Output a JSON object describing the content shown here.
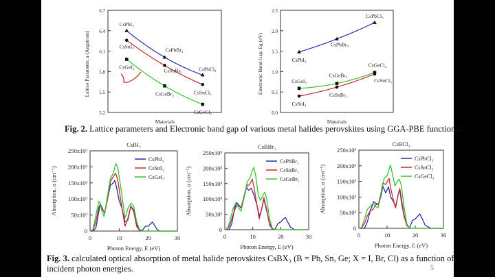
{
  "colors": {
    "Pb": "#2a2aa8",
    "Sn": "#c42a2a",
    "Ge": "#34c234",
    "axis": "#333333"
  },
  "fig2": {
    "caption_label": "Fig. 2.",
    "caption_text": " Lattice parameters and Electronic band gap of various metal halides perovskites using GGA-PBE functional."
  },
  "fig3": {
    "caption_label": "Fig. 3.",
    "caption_line1": " calculated optical absorption of metal halide perovskites CsBX₃ (B = Pb, Sn, Ge; X = I, Br, Cl) as a function of",
    "caption_line2": "incident photon energies."
  },
  "page_number": "5",
  "chart_data": [
    {
      "type": "line",
      "xlabel": "Materials",
      "ylabel": "Lattice Parameter, a (Angstrom)",
      "ylim": [
        5.2,
        6.7
      ],
      "yticks": [
        "5.2",
        "5.5",
        "5.8",
        "6.1",
        "6.4",
        "6.7"
      ],
      "grid": false,
      "series": [
        {
          "key": "Pb",
          "marker": "triangle",
          "labels": [
            "CsPbI₃",
            "CsPbBr₃",
            "CsPbCl₃"
          ],
          "values": [
            6.4,
            6.01,
            5.75
          ]
        },
        {
          "key": "Sn",
          "marker": "circle",
          "labels": [
            "CsSnI₃",
            "CsSnBr₃",
            "CsSnCl₃"
          ],
          "values": [
            6.26,
            5.89,
            5.61
          ]
        },
        {
          "key": "Ge",
          "marker": "square",
          "labels": [
            "CsGeI₃",
            "CsGeBr₃",
            "CsGeCl₃"
          ],
          "values": [
            5.98,
            5.59,
            5.32
          ]
        }
      ]
    },
    {
      "type": "line",
      "xlabel": "Materials",
      "ylabel": "Electronic Band Gap, Eg (eV)",
      "ylim": [
        0.0,
        2.5
      ],
      "yticks": [
        "0.0",
        "0.5",
        "1.0",
        "1.5",
        "2.0",
        "2.5"
      ],
      "grid": false,
      "series": [
        {
          "key": "Pb",
          "marker": "triangle",
          "labels": [
            "CsPbI₃",
            "CsPbBr₃",
            "CsPbCl₃"
          ],
          "values": [
            1.48,
            1.8,
            2.2
          ]
        },
        {
          "key": "Sn",
          "marker": "circle",
          "labels": [
            "CsSnI₃",
            "CsSnBr₃",
            "CsSnCl₃"
          ],
          "values": [
            0.4,
            0.62,
            0.94
          ]
        },
        {
          "key": "Ge",
          "marker": "square",
          "labels": [
            "CsGeI₃",
            "CsGeBr₃",
            "CsGeCl₃"
          ],
          "values": [
            0.59,
            0.71,
            0.98
          ]
        }
      ]
    },
    {
      "type": "line",
      "title": "CsBI₃",
      "xlabel": "Photon Energy, E (eV)",
      "ylabel": "Absorption, α (cm⁻¹)",
      "xlim": [
        0,
        30
      ],
      "ylim": [
        0,
        250000
      ],
      "xticks": [
        "0",
        "10",
        "20",
        "30"
      ],
      "yticks": [
        "0",
        "50x10³",
        "100x10³",
        "150x10³",
        "200x10³",
        "250x10³"
      ],
      "legend": "top-right",
      "grid": false,
      "series": [
        {
          "key": "Pb",
          "name": "CsPbI₃",
          "x": [
            0,
            1,
            2,
            3,
            3.5,
            4,
            5,
            6,
            7,
            8,
            8.5,
            9,
            10,
            11,
            12,
            13,
            14,
            15,
            16,
            17,
            18,
            19,
            20,
            21,
            21.5,
            22,
            23,
            24,
            30
          ],
          "y": [
            0,
            0,
            10000,
            60000,
            85000,
            75000,
            55000,
            100000,
            143000,
            150000,
            158000,
            140000,
            95000,
            70000,
            28000,
            35000,
            78000,
            65000,
            20000,
            5000,
            2000,
            15000,
            15000,
            25000,
            28000,
            20000,
            5000,
            0,
            0
          ]
        },
        {
          "key": "Sn",
          "name": "CsSnI₃",
          "x": [
            0,
            1,
            2,
            3,
            3.5,
            4,
            5,
            6,
            7,
            8,
            8.8,
            9.5,
            10,
            11,
            12,
            13,
            14,
            15,
            16,
            17,
            18,
            30
          ],
          "y": [
            0,
            2000,
            30000,
            75000,
            82000,
            70000,
            58000,
            100000,
            155000,
            170000,
            180000,
            160000,
            130000,
            70000,
            15000,
            40000,
            78000,
            60000,
            15000,
            2000,
            0,
            0
          ]
        },
        {
          "key": "Ge",
          "name": "CsGeI₃",
          "x": [
            0,
            1,
            2,
            3,
            3.5,
            4,
            4.8,
            6,
            7,
            8,
            8.8,
            9.5,
            10,
            11,
            12,
            13,
            14,
            15,
            16,
            17,
            18,
            30
          ],
          "y": [
            0,
            5000,
            50000,
            92000,
            88000,
            65000,
            45000,
            110000,
            165000,
            180000,
            210000,
            200000,
            170000,
            110000,
            40000,
            70000,
            87000,
            78000,
            30000,
            5000,
            0,
            0
          ]
        }
      ]
    },
    {
      "type": "line",
      "title": "CsBBr₃",
      "xlabel": "Photon Energy, E (eV)",
      "ylabel": "Absorption, α (cm⁻¹)",
      "xlim": [
        0,
        30
      ],
      "ylim": [
        0,
        250000
      ],
      "xticks": [
        "0",
        "10",
        "20",
        "30"
      ],
      "yticks": [
        "0",
        "50x10³",
        "100x10³",
        "150x10³",
        "200x10³",
        "250x10³"
      ],
      "legend": "top-right",
      "grid": false,
      "series": [
        {
          "key": "Pb",
          "name": "CsPbBr₃",
          "x": [
            0,
            1.5,
            2.5,
            3.5,
            4.3,
            5,
            6,
            7,
            7.8,
            8.5,
            9.5,
            10.5,
            11.5,
            12.3,
            13,
            14,
            15,
            16,
            17,
            18,
            19,
            20,
            21,
            21.7,
            22.5,
            23.5,
            25,
            30
          ],
          "y": [
            0,
            0,
            20000,
            70000,
            88000,
            80000,
            70000,
            110000,
            138000,
            128000,
            135000,
            110000,
            80000,
            45000,
            60000,
            100000,
            60000,
            20000,
            3000,
            2000,
            20000,
            25000,
            35000,
            40000,
            25000,
            8000,
            0,
            0
          ]
        },
        {
          "key": "Sn",
          "name": "CsSnBr₃",
          "x": [
            0,
            1,
            2,
            3,
            4,
            5,
            5.8,
            7,
            8,
            8.8,
            9.8,
            10.5,
            11.5,
            12.3,
            13,
            14,
            15,
            16,
            17,
            18,
            30
          ],
          "y": [
            0,
            2000,
            20000,
            50000,
            75000,
            78000,
            70000,
            115000,
            145000,
            145000,
            165000,
            135000,
            80000,
            35000,
            60000,
            105000,
            65000,
            15000,
            2000,
            0,
            0
          ]
        },
        {
          "key": "Ge",
          "name": "CsGeBr₃",
          "x": [
            0,
            1,
            2,
            3,
            4,
            5,
            5.8,
            7,
            8,
            9,
            10.3,
            11,
            12,
            12.8,
            13.5,
            14.3,
            15,
            16,
            17,
            18,
            30
          ],
          "y": [
            0,
            5000,
            35000,
            70000,
            88000,
            70000,
            60000,
            110000,
            155000,
            170000,
            202000,
            180000,
            110000,
            95000,
            110000,
            122000,
            100000,
            35000,
            5000,
            0,
            0
          ]
        }
      ]
    },
    {
      "type": "line",
      "title": "CsBCl₃",
      "xlabel": "Photon Energy, E (eV)",
      "ylabel": "Absorption, α (cm⁻¹)",
      "xlim": [
        0,
        30
      ],
      "ylim": [
        0,
        250000
      ],
      "xticks": [
        "0",
        "10",
        "20",
        "30"
      ],
      "yticks": [
        "0",
        "50x10³",
        "100x10³",
        "150x10³",
        "200x10³",
        "250x10³"
      ],
      "legend": "top-right",
      "grid": false,
      "series": [
        {
          "key": "Pb",
          "name": "CsPbCl₃",
          "x": [
            0,
            2,
            3,
            4,
            5.3,
            6,
            7,
            8,
            8.5,
            9.5,
            10.5,
            11.3,
            12.3,
            13,
            14,
            14.5,
            15,
            16,
            17,
            18,
            19,
            20,
            21,
            21.6,
            22.5,
            23.5,
            25.5,
            30
          ],
          "y": [
            0,
            0,
            20000,
            55000,
            85000,
            80000,
            75000,
            110000,
            135000,
            113000,
            133000,
            100000,
            85000,
            70000,
            110000,
            125000,
            90000,
            40000,
            10000,
            2000,
            25000,
            30000,
            40000,
            46000,
            30000,
            10000,
            0,
            0
          ]
        },
        {
          "key": "Sn",
          "name": "CsSnCl₃",
          "x": [
            0,
            1,
            2,
            3,
            4,
            5,
            6,
            7,
            8,
            8.5,
            9.5,
            10.7,
            11.5,
            12.3,
            13,
            14,
            14.5,
            15,
            16,
            17,
            18,
            30
          ],
          "y": [
            0,
            2000,
            15000,
            40000,
            55000,
            60000,
            75000,
            80000,
            120000,
            145000,
            140000,
            160000,
            120000,
            90000,
            65000,
            110000,
            127000,
            100000,
            45000,
            10000,
            0,
            0
          ]
        },
        {
          "key": "Ge",
          "name": "CsGeCl₃",
          "x": [
            0,
            1,
            2,
            3,
            4,
            5,
            6,
            6.8,
            8,
            9,
            10,
            11.2,
            12,
            12.8,
            13.5,
            14.3,
            15,
            16,
            17,
            18,
            30
          ],
          "y": [
            0,
            3000,
            30000,
            60000,
            70000,
            80000,
            70000,
            65000,
            120000,
            160000,
            168000,
            203000,
            170000,
            135000,
            148000,
            157000,
            140000,
            70000,
            15000,
            0,
            0
          ]
        }
      ]
    }
  ]
}
